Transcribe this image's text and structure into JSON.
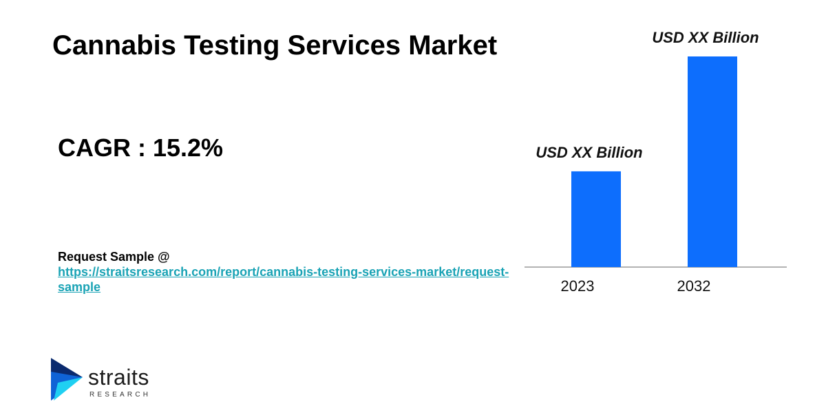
{
  "title": "Cannabis Testing Services Market",
  "cagr": "CAGR : 15.2%",
  "request": {
    "label": "Request Sample @",
    "url": "https://straitsresearch.com/report/cannabis-testing-services-market/request-sample"
  },
  "logo": {
    "word": "straits",
    "sub": "RESEARCH",
    "icon": "straits-arrow-logo",
    "colors": {
      "dark": "#0a2a6e",
      "mid": "#0f63d6",
      "light": "#1fd0f2"
    }
  },
  "colors": {
    "bar": "#0d6efd",
    "baseline": "#999999",
    "link": "#1aa3b5"
  },
  "chart_data": {
    "type": "bar",
    "categories": [
      "2023",
      "2032"
    ],
    "values": [
      1,
      2.2
    ],
    "data_labels": [
      "USD XX Billion",
      "USD XX Billion"
    ],
    "title": "",
    "xlabel": "",
    "ylabel": "",
    "ylim": [
      0,
      2.2
    ],
    "grid": false,
    "legend": "none"
  }
}
